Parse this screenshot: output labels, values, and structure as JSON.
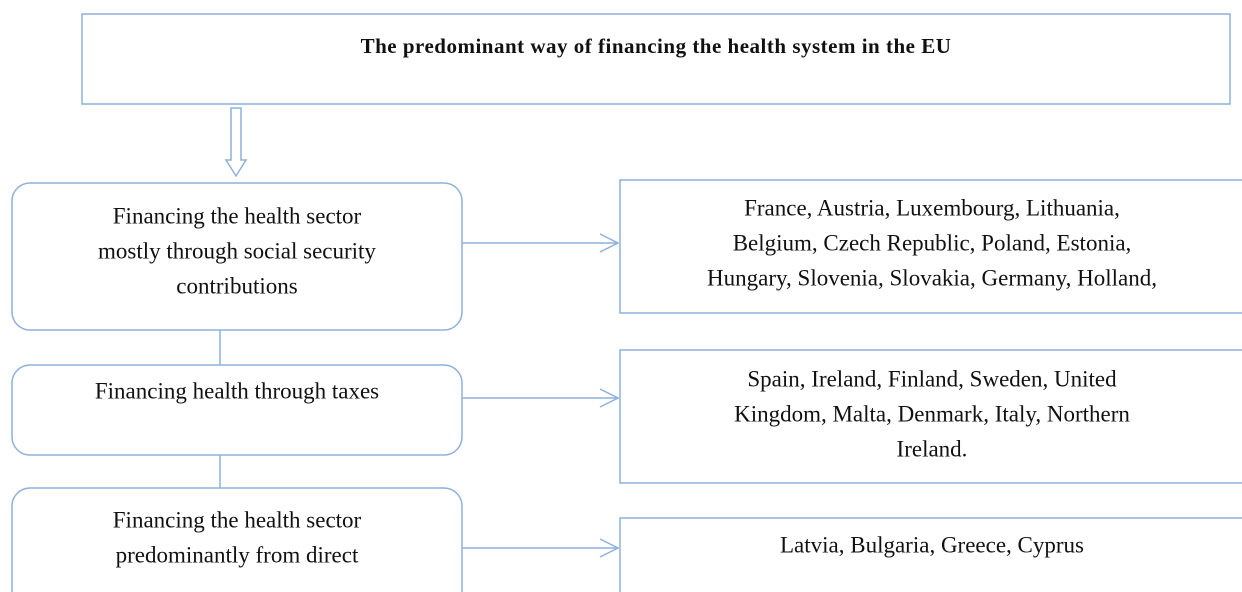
{
  "title": "The predominant way of financing the health system in the EU",
  "rows": [
    {
      "category": [
        "Financing the health sector",
        "mostly through social security",
        "contributions"
      ],
      "countries": [
        "France, Austria, Luxembourg, Lithuania,",
        "Belgium, Czech Republic, Poland, Estonia,",
        "Hungary, Slovenia, Slovakia, Germany, Holland,"
      ]
    },
    {
      "category": [
        "Financing health through taxes"
      ],
      "countries": [
        "Spain, Ireland, Finland, Sweden, United",
        "Kingdom, Malta, Denmark, Italy, Northern",
        "Ireland."
      ]
    },
    {
      "category": [
        "Financing the health sector",
        "predominantly from direct"
      ],
      "countries": [
        "Latvia, Bulgaria, Greece, Cyprus"
      ]
    }
  ]
}
